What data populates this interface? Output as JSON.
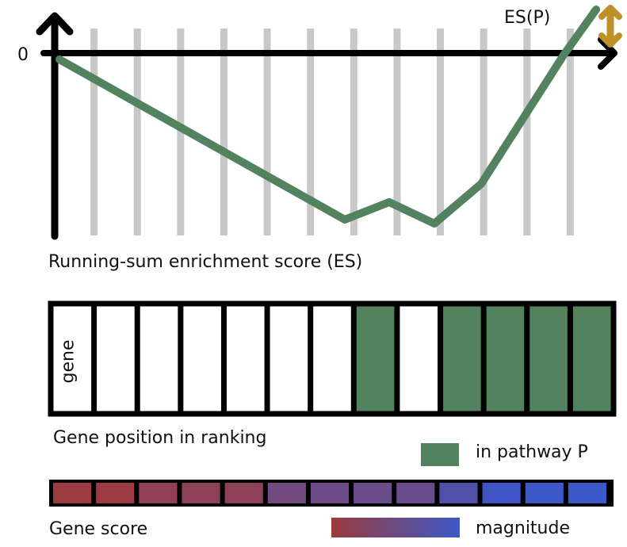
{
  "es_chart": {
    "zero_label": "0",
    "es_label": "ES(P)",
    "caption": "Running-sum enrichment score (ES)",
    "line_color": "#53825f",
    "bar_color": "#c8c8c8",
    "arrow_color": "#bd9128",
    "axis_color": "#000000"
  },
  "ranking": {
    "cell_label": "gene",
    "caption": "Gene position in ranking",
    "in_pathway": [
      false,
      false,
      false,
      false,
      false,
      false,
      false,
      true,
      false,
      true,
      true,
      true,
      true
    ],
    "pathway_color": "#53825f"
  },
  "legend": {
    "pathway_label": "in pathway P",
    "magnitude_label": "magnitude",
    "gradient_start": "#9b3b3b",
    "gradient_end": "#3c58c8"
  },
  "gene_score": {
    "caption": "Gene score",
    "cell_colors": [
      "#9b3c40",
      "#9b3c42",
      "#8f4052",
      "#8d4156",
      "#8c4158",
      "#734a7e",
      "#6c4b86",
      "#6a4c8a",
      "#684c8c",
      "#5050a8",
      "#4054c4",
      "#3d58c8",
      "#3d58c8"
    ]
  }
}
